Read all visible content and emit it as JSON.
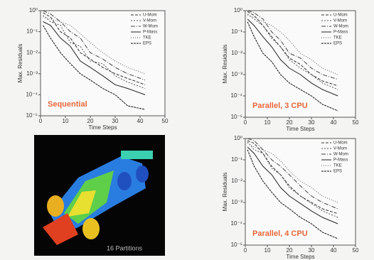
{
  "chart_data": [
    {
      "type": "line",
      "x_label": "Time Steps",
      "y_label": "Max. Residuals",
      "annotation": "Sequential",
      "ylog": true,
      "legend": "upper right",
      "xlim": [
        0,
        50
      ],
      "xticks": [
        0,
        10,
        20,
        30,
        40,
        50
      ],
      "ylim": [
        1e-05,
        1
      ],
      "yticks": [
        {
          "value": 1,
          "label": "10⁰"
        },
        {
          "value": 0.1,
          "label": "10⁻¹"
        },
        {
          "value": 0.01,
          "label": "10⁻²"
        },
        {
          "value": 0.001,
          "label": "10⁻³"
        },
        {
          "value": 0.0001,
          "label": "10⁻⁴"
        },
        {
          "value": 1e-05,
          "label": "10⁻⁵"
        }
      ],
      "x": [
        1,
        4,
        8,
        12,
        16,
        20,
        25,
        30,
        35,
        42
      ],
      "series": [
        {
          "name": "U-Mom",
          "color": "#333333",
          "values": [
            0.8,
            0.5,
            0.1,
            0.05,
            0.01,
            0.005,
            0.002,
            0.001,
            0.0006,
            0.0003
          ]
        },
        {
          "name": "V-Mom",
          "color": "#555555",
          "values": [
            0.6,
            0.3,
            0.2,
            0.03,
            0.02,
            0.004,
            0.003,
            0.0008,
            0.0004,
            0.0002
          ]
        },
        {
          "name": "W-Mom",
          "color": "#444444",
          "values": [
            1,
            0.7,
            0.3,
            0.1,
            0.05,
            0.01,
            0.005,
            0.002,
            0.001,
            0.0005
          ]
        },
        {
          "name": "P-Mass",
          "color": "#222222",
          "values": [
            0.3,
            0.2,
            0.05,
            0.02,
            0.004,
            0.002,
            0.0008,
            0.0003,
            0.0002,
            0.0001
          ]
        },
        {
          "name": "TKE",
          "color": "#666666",
          "values": [
            0.5,
            0.4,
            0.3,
            0.2,
            0.08,
            0.03,
            0.01,
            0.004,
            0.002,
            0.001
          ]
        },
        {
          "name": "EPS",
          "color": "#111111",
          "values": [
            0.2,
            0.05,
            0.01,
            0.003,
            0.001,
            0.0005,
            0.0002,
            0.0001,
            3e-05,
            2e-05
          ]
        }
      ]
    },
    {
      "type": "line",
      "x_label": "Time Steps",
      "y_label": "Max. Residuals",
      "annotation": "Parallel, 3 CPU",
      "ylog": true,
      "legend": "upper right",
      "xlim": [
        0,
        50
      ],
      "xticks": [
        0,
        10,
        20,
        30,
        40,
        50
      ],
      "ylim": [
        1e-05,
        1
      ],
      "yticks": [
        {
          "value": 1,
          "label": "10⁰"
        },
        {
          "value": 0.1,
          "label": "10⁻¹"
        },
        {
          "value": 0.01,
          "label": "10⁻²"
        },
        {
          "value": 0.001,
          "label": "10⁻³"
        },
        {
          "value": 0.0001,
          "label": "10⁻⁴"
        },
        {
          "value": 1e-05,
          "label": "10⁻⁵"
        }
      ],
      "x": [
        1,
        4,
        8,
        12,
        16,
        20,
        25,
        30,
        35,
        42
      ],
      "series": [
        {
          "name": "U-Mom",
          "color": "#333333",
          "values": [
            0.9,
            0.6,
            0.2,
            0.06,
            0.02,
            0.006,
            0.003,
            0.001,
            0.0005,
            0.0003
          ]
        },
        {
          "name": "V-Mom",
          "color": "#555555",
          "values": [
            0.7,
            0.4,
            0.2,
            0.05,
            0.02,
            0.005,
            0.002,
            0.001,
            0.0004,
            0.0002
          ]
        },
        {
          "name": "W-Mom",
          "color": "#444444",
          "values": [
            1,
            0.8,
            0.4,
            0.1,
            0.04,
            0.01,
            0.006,
            0.002,
            0.001,
            0.0006
          ]
        },
        {
          "name": "P-Mass",
          "color": "#222222",
          "values": [
            0.4,
            0.2,
            0.06,
            0.02,
            0.005,
            0.002,
            0.001,
            0.0004,
            0.0002,
            0.0001
          ]
        },
        {
          "name": "TKE",
          "color": "#666666",
          "values": [
            0.6,
            0.5,
            0.3,
            0.2,
            0.1,
            0.04,
            0.01,
            0.005,
            0.002,
            0.001
          ]
        },
        {
          "name": "EPS",
          "color": "#111111",
          "values": [
            0.3,
            0.06,
            0.01,
            0.004,
            0.001,
            0.0004,
            0.0002,
            0.0001,
            4e-05,
            2e-05
          ]
        }
      ]
    },
    {
      "type": "line",
      "x_label": "Time Steps",
      "y_label": "Max. Residuals",
      "annotation": "Parallel, 4 CPU",
      "ylog": true,
      "legend": "upper right",
      "xlim": [
        0,
        50
      ],
      "xticks": [
        0,
        10,
        20,
        30,
        40,
        50
      ],
      "ylim": [
        1e-05,
        1
      ],
      "yticks": [
        {
          "value": 1,
          "label": "10⁰"
        },
        {
          "value": 0.1,
          "label": "10⁻¹"
        },
        {
          "value": 0.01,
          "label": "10⁻²"
        },
        {
          "value": 0.001,
          "label": "10⁻³"
        },
        {
          "value": 0.0001,
          "label": "10⁻⁴"
        },
        {
          "value": 1e-05,
          "label": "10⁻⁵"
        }
      ],
      "x": [
        1,
        4,
        8,
        12,
        16,
        20,
        25,
        30,
        35,
        42
      ],
      "series": [
        {
          "name": "U-Mom",
          "color": "#333333",
          "values": [
            0.8,
            0.6,
            0.2,
            0.05,
            0.02,
            0.006,
            0.002,
            0.001,
            0.0005,
            0.0003
          ]
        },
        {
          "name": "V-Mom",
          "color": "#555555",
          "values": [
            0.7,
            0.3,
            0.2,
            0.04,
            0.02,
            0.005,
            0.002,
            0.0009,
            0.0004,
            0.0002
          ]
        },
        {
          "name": "W-Mom",
          "color": "#444444",
          "values": [
            1,
            0.8,
            0.3,
            0.1,
            0.05,
            0.02,
            0.006,
            0.002,
            0.001,
            0.0005
          ]
        },
        {
          "name": "P-Mass",
          "color": "#222222",
          "values": [
            0.4,
            0.2,
            0.05,
            0.02,
            0.005,
            0.002,
            0.0009,
            0.0004,
            0.0002,
            0.0001
          ]
        },
        {
          "name": "TKE",
          "color": "#666666",
          "values": [
            0.6,
            0.4,
            0.3,
            0.2,
            0.09,
            0.03,
            0.01,
            0.005,
            0.002,
            0.001
          ]
        },
        {
          "name": "EPS",
          "color": "#111111",
          "values": [
            0.3,
            0.05,
            0.01,
            0.003,
            0.001,
            0.0005,
            0.0002,
            0.0001,
            4e-05,
            2e-05
          ]
        }
      ]
    }
  ],
  "image": {
    "caption": "16 Partitions"
  }
}
